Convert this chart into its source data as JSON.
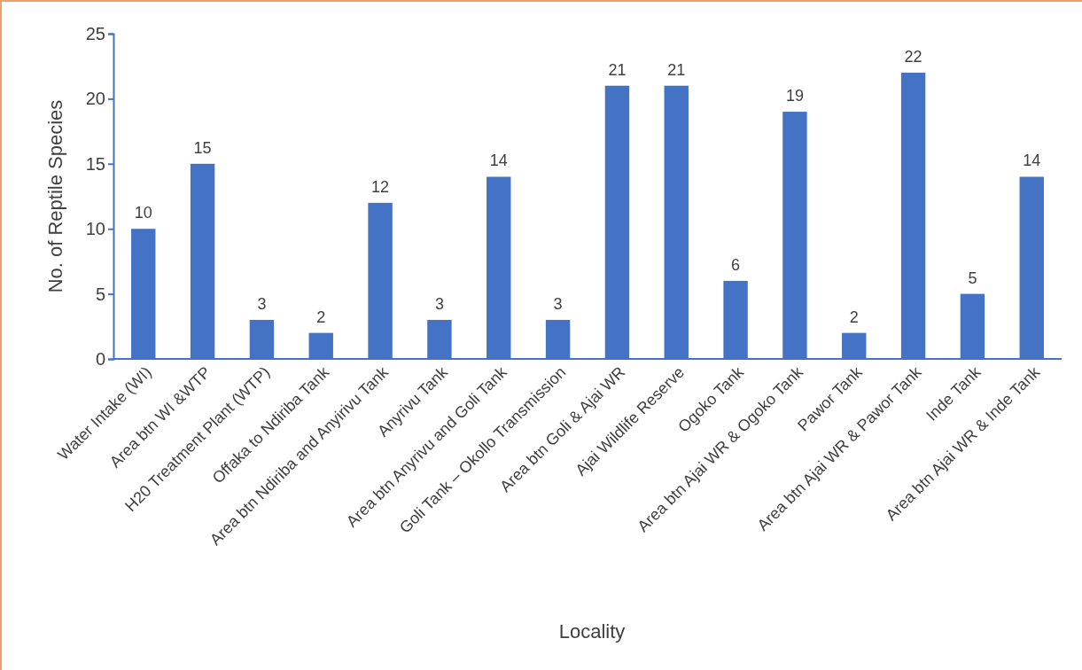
{
  "chart_data": {
    "type": "bar",
    "xlabel": "Locality",
    "ylabel": "No. of Reptile Species",
    "categories": [
      "Water Intake (WI)",
      "Area btn WI &WTP",
      "H20 Treatment Plant (WTP)",
      "Offaka to Ndiriba Tank",
      "Area btn Ndiriba and Anyirivu Tank",
      "Anyrivu Tank",
      "Area btn Anyrivu and Goli Tank",
      "Goli Tank – Okollo Transmission",
      "Area btn Goli & Ajai WR",
      "Ajai Wildlife Reserve",
      "Ogoko Tank",
      "Area btn Ajai WR & Ogoko Tank",
      "Pawor Tank",
      "Area btn Ajai WR & Pawor Tank",
      "Inde Tank",
      "Area btn Ajai WR & Inde Tank"
    ],
    "values": [
      10,
      15,
      3,
      2,
      12,
      3,
      14,
      3,
      21,
      21,
      6,
      19,
      2,
      22,
      5,
      14
    ],
    "color": "#4472c4",
    "ylim": [
      0,
      25
    ],
    "yticks": [
      0,
      5,
      10,
      15,
      20,
      25
    ],
    "data_labels": true
  }
}
